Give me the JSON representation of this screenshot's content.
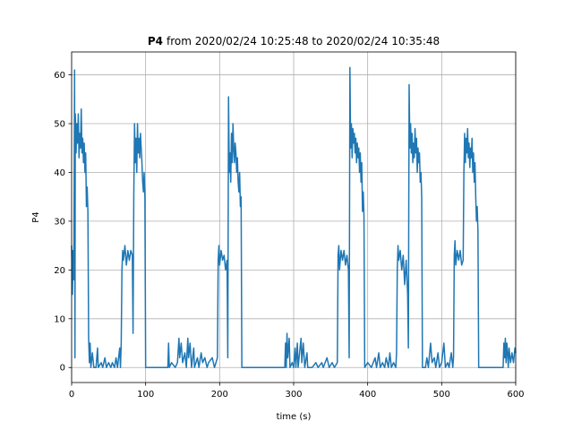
{
  "chart_data": {
    "type": "line",
    "title_bold": "P4",
    "title": "from 2020/02/24 10:25:48 to 2020/02/24 10:35:48",
    "xlabel": "time (s)",
    "ylabel": "P4",
    "color": "#1f77b4",
    "grid": true,
    "xlim": [
      0,
      600
    ],
    "ylim": [
      -3.08,
      64.7
    ],
    "xticks": [
      0,
      100,
      200,
      300,
      400,
      500,
      600
    ],
    "yticks": [
      0,
      10,
      20,
      30,
      40,
      50,
      60
    ],
    "x": [
      0,
      1,
      2,
      3,
      4,
      4.5,
      5,
      6,
      7,
      8,
      9,
      10,
      11,
      12,
      13,
      14,
      15,
      16,
      17,
      18,
      19,
      20,
      21,
      22,
      23,
      24,
      25,
      26,
      28,
      30,
      33,
      35,
      36,
      40,
      42,
      45,
      47,
      50,
      53,
      55,
      58,
      60,
      62,
      65,
      66,
      67,
      68,
      69,
      70,
      72,
      74,
      76,
      78,
      80,
      82,
      83,
      84,
      85,
      86,
      87,
      88,
      89,
      90,
      91,
      92,
      93,
      94,
      95,
      96,
      97,
      98,
      99,
      100,
      110,
      120,
      130,
      131,
      132,
      135,
      140,
      143,
      145,
      146,
      148,
      150,
      153,
      155,
      157,
      158,
      160,
      162,
      165,
      166,
      170,
      172,
      175,
      177,
      180,
      183,
      185,
      190,
      193,
      197,
      198,
      199,
      200,
      202,
      204,
      206,
      208,
      210,
      211,
      212,
      213,
      214,
      215,
      216,
      217,
      218,
      219,
      220,
      221,
      222,
      223,
      224,
      225,
      226,
      227,
      228,
      229,
      230,
      240,
      250,
      260,
      270,
      280,
      288,
      289,
      290,
      291,
      292,
      294,
      295,
      298,
      300,
      302,
      303,
      305,
      306,
      310,
      311,
      313,
      315,
      318,
      319,
      325,
      330,
      333,
      338,
      340,
      345,
      348,
      352,
      355,
      359,
      360,
      361,
      362,
      364,
      366,
      368,
      370,
      372,
      374,
      375,
      376,
      377,
      378,
      379,
      380,
      381,
      382,
      383,
      384,
      385,
      386,
      387,
      388,
      389,
      390,
      391,
      392,
      393,
      394,
      395,
      396,
      400,
      405,
      410,
      412,
      415,
      417,
      420,
      423,
      425,
      428,
      430,
      432,
      435,
      438,
      439,
      440,
      441,
      442,
      444,
      446,
      448,
      450,
      452,
      454,
      455,
      456,
      457,
      458,
      459,
      460,
      461,
      462,
      463,
      464,
      465,
      466,
      467,
      468,
      469,
      470,
      471,
      472,
      473,
      474,
      478,
      480,
      482,
      485,
      487,
      490,
      492,
      495,
      497,
      500,
      503,
      505,
      508,
      510,
      513,
      515,
      516,
      517,
      518,
      519,
      521,
      523,
      525,
      527,
      529,
      530,
      531,
      532,
      533,
      534,
      535,
      536,
      537,
      538,
      539,
      540,
      541,
      542,
      543,
      544,
      545,
      546,
      547,
      548,
      549,
      550,
      560,
      570,
      580,
      583,
      584,
      585,
      586,
      587,
      588,
      589,
      590,
      591,
      593,
      595,
      597,
      599,
      600
    ],
    "values": [
      25,
      15,
      24,
      18,
      61,
      2,
      52,
      44,
      50,
      46,
      52,
      43,
      48,
      45,
      53,
      44,
      47,
      42,
      46,
      40,
      44,
      33,
      37,
      32,
      6,
      1,
      5,
      0,
      3,
      0,
      0,
      4,
      0,
      1,
      0,
      2,
      0,
      1,
      0,
      1,
      0,
      2,
      0,
      4,
      0,
      5,
      20,
      24,
      22,
      25,
      21,
      24,
      22,
      24,
      23,
      7,
      35,
      50,
      42,
      47,
      40,
      50,
      44,
      47,
      43,
      48,
      45,
      42,
      38,
      36,
      40,
      35,
      0,
      0,
      0,
      0,
      5,
      0,
      1,
      0,
      1,
      6,
      2,
      5,
      1,
      3,
      0,
      6,
      2,
      5,
      0,
      4,
      0,
      2,
      0,
      3,
      1,
      2,
      0,
      1,
      2,
      0,
      2,
      22,
      25,
      21,
      24,
      22,
      23,
      20,
      22,
      2,
      55.5,
      40,
      44,
      38,
      48,
      42,
      50,
      45,
      42,
      46,
      44,
      40,
      43,
      38,
      36,
      40,
      33,
      35,
      0,
      0,
      0,
      0,
      0,
      0,
      0,
      5,
      0,
      7,
      2,
      6,
      0,
      1,
      0,
      4,
      0,
      5,
      0,
      6,
      1,
      5,
      0,
      3,
      0,
      0,
      1,
      0,
      1,
      0,
      2,
      0,
      1,
      0,
      1,
      23,
      25,
      20,
      24,
      22,
      24,
      21,
      23,
      20,
      2,
      61.5,
      45,
      50,
      43,
      49,
      46,
      48,
      44,
      47,
      42,
      46,
      43,
      45,
      40,
      44,
      38,
      42,
      32,
      36,
      31,
      0,
      1,
      0,
      2,
      0,
      3,
      0,
      1,
      0,
      2,
      0,
      3,
      0,
      1,
      0,
      3,
      20,
      25,
      22,
      24,
      20,
      23,
      17,
      22,
      15,
      4,
      58,
      45,
      50,
      44,
      48,
      42,
      46,
      43,
      49,
      44,
      47,
      40,
      45,
      42,
      44,
      38,
      40,
      35,
      0,
      0,
      2,
      0,
      5,
      1,
      2,
      0,
      3,
      0,
      1,
      5,
      0,
      1,
      0,
      3,
      0,
      2,
      23,
      26,
      21,
      24,
      22,
      24,
      21,
      22,
      40,
      48,
      42,
      47,
      44,
      49,
      43,
      46,
      41,
      45,
      43,
      47,
      40,
      44,
      38,
      42,
      35,
      30,
      33,
      28,
      0,
      0,
      0,
      0,
      0,
      5,
      2,
      6,
      1,
      5,
      3,
      0,
      4,
      1,
      3,
      1,
      4,
      3
    ]
  }
}
